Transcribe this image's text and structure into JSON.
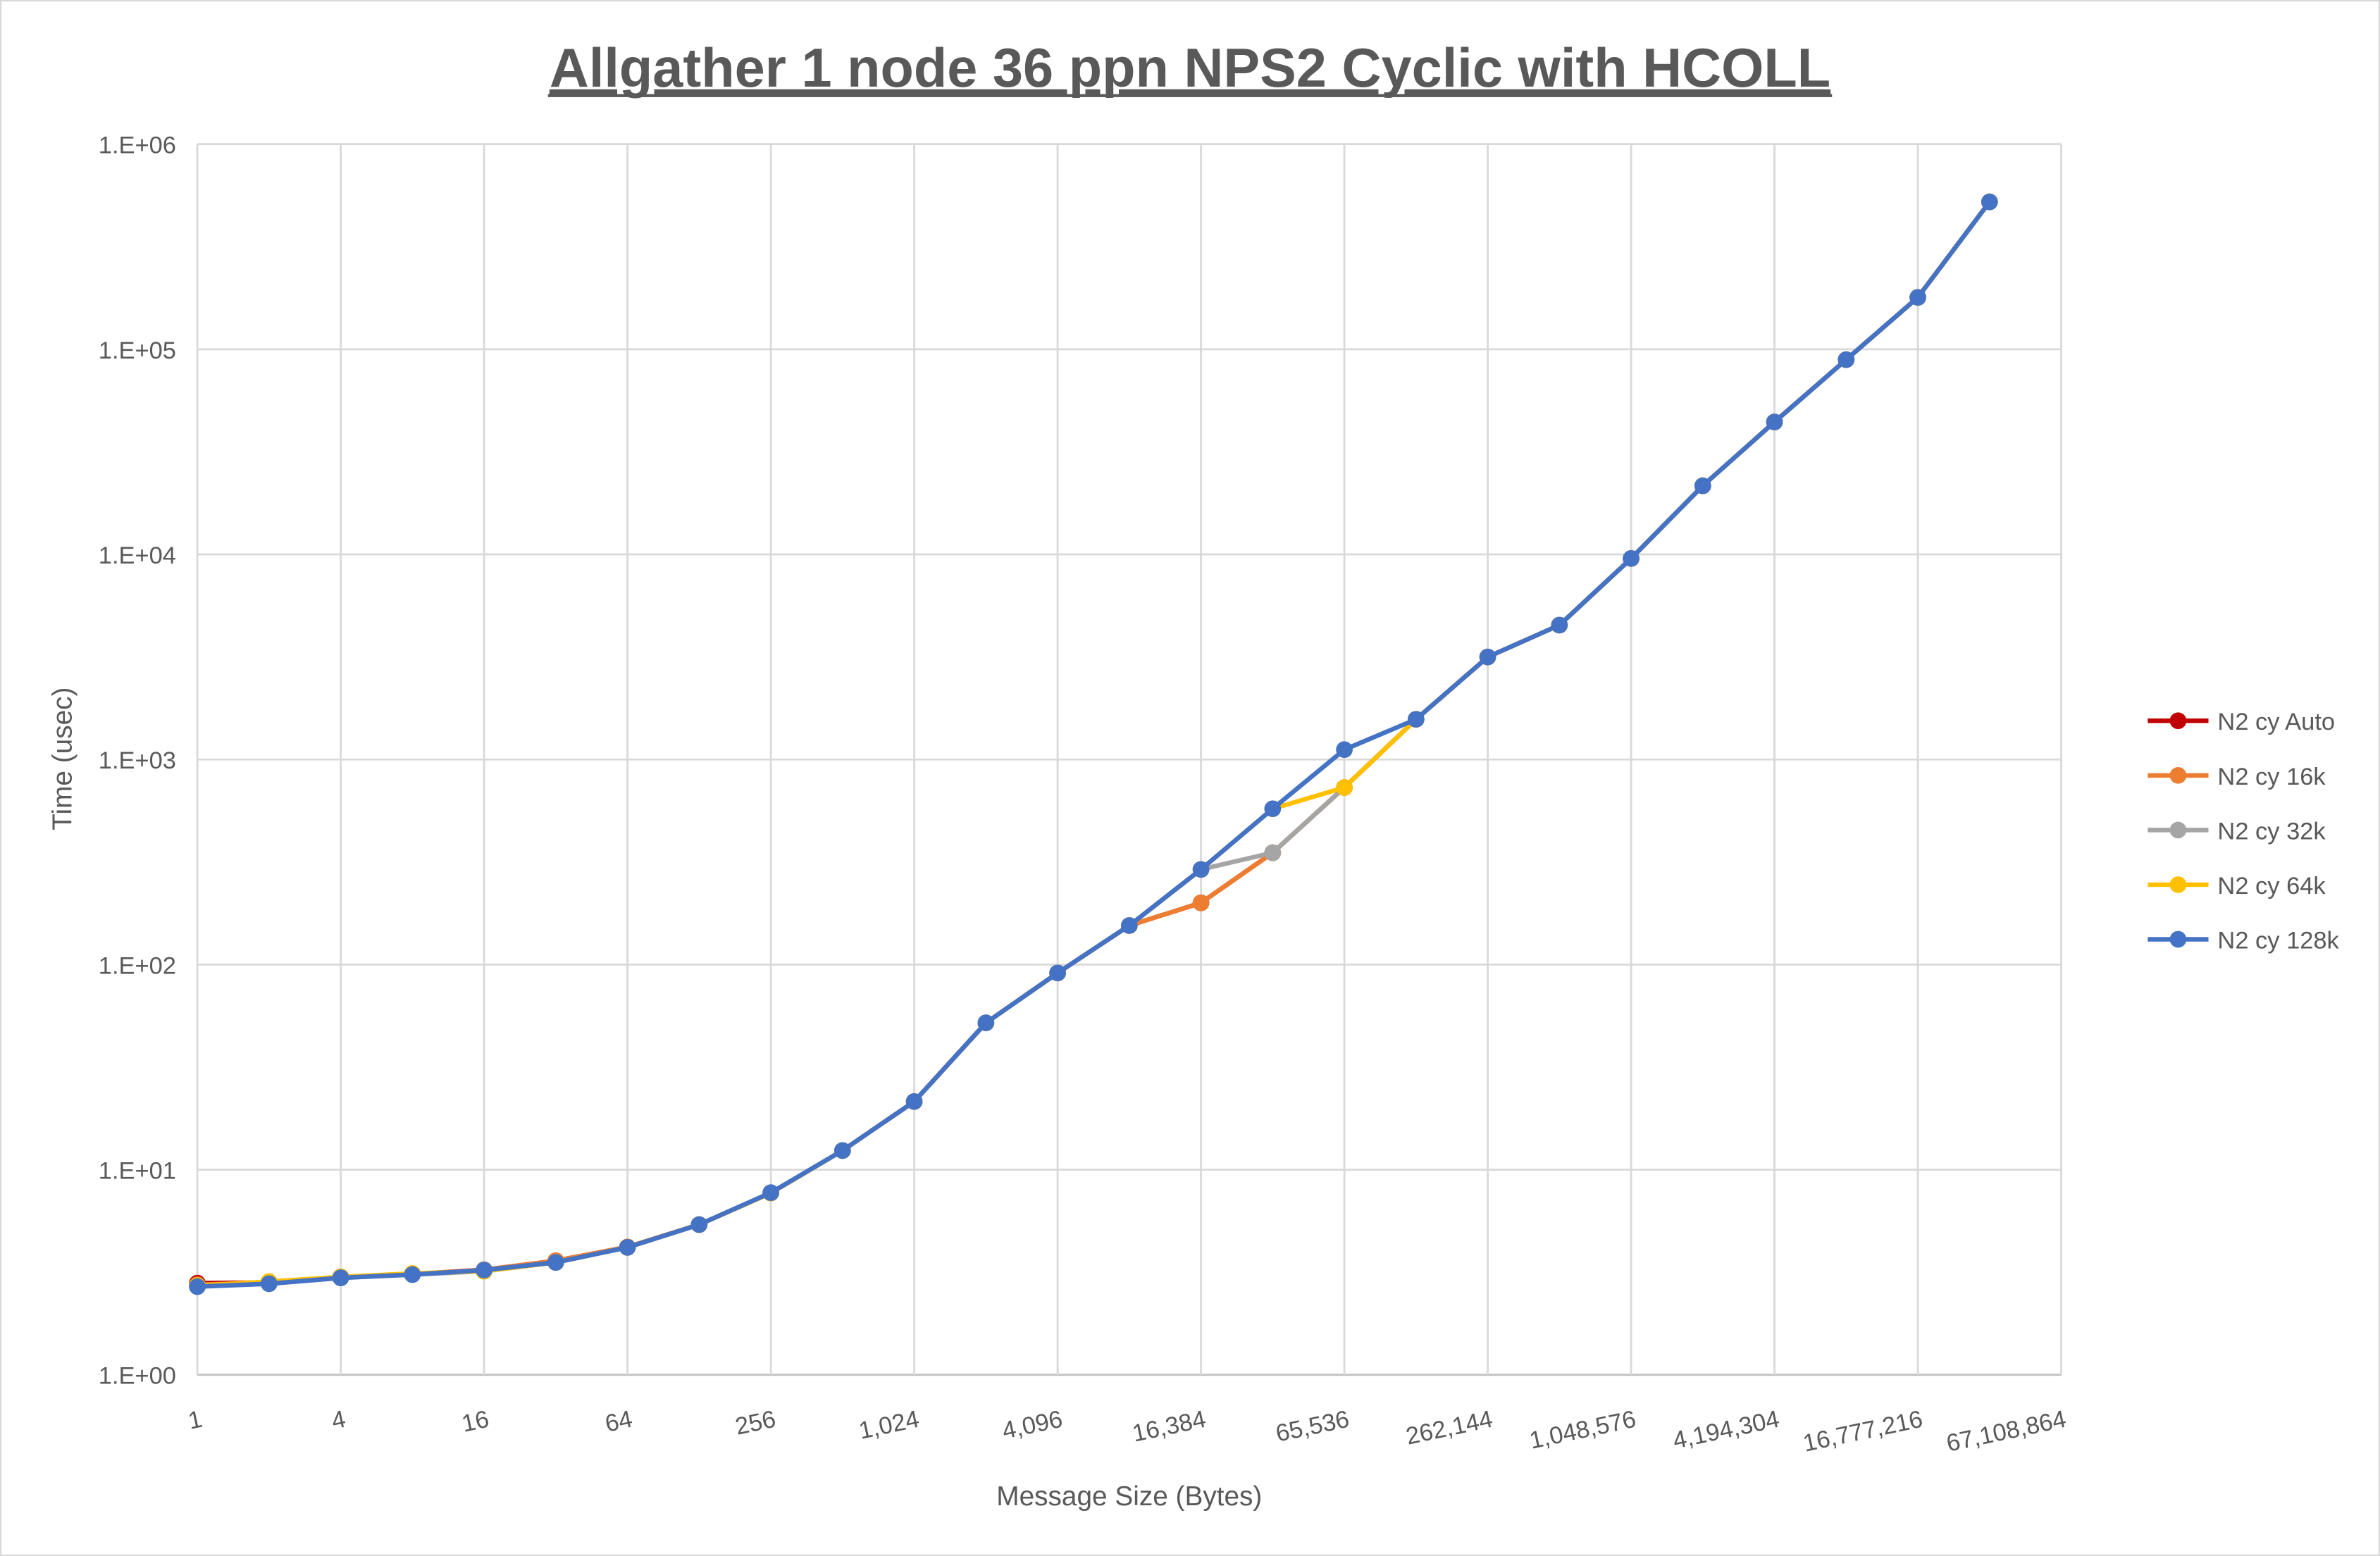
{
  "chart_data": {
    "type": "line",
    "title": "Allgather 1 node 36 ppn NPS2 Cyclic with HCOLL",
    "xlabel": "Message Size (Bytes)",
    "ylabel": "Time (usec)",
    "x_scale": "log2",
    "y_scale": "log10",
    "ylim": [
      1,
      1000000
    ],
    "xlim": [
      1,
      67108864
    ],
    "grid": true,
    "legend_position": "right",
    "x_tick_labels": [
      "1",
      "4",
      "16",
      "64",
      "256",
      "1,024",
      "4,096",
      "16,384",
      "65,536",
      "262,144",
      "1,048,576",
      "4,194,304",
      "16,777,216",
      "67,108,864"
    ],
    "y_tick_labels": [
      "1.E+00",
      "1.E+01",
      "1.E+02",
      "1.E+03",
      "1.E+04",
      "1.E+05",
      "1.E+06"
    ],
    "x": [
      1,
      2,
      4,
      8,
      16,
      32,
      64,
      128,
      256,
      512,
      1024,
      2048,
      4096,
      8192,
      16384,
      32768,
      65536,
      131072,
      262144,
      524288,
      1048576,
      2097152,
      4194304,
      8388608,
      16777216,
      33554432
    ],
    "series": [
      {
        "name": "N2 cy Auto",
        "color": "#C00000",
        "values": [
          2.8,
          2.82,
          3.0,
          3.1,
          3.25,
          3.6,
          4.2,
          5.4,
          7.7,
          12.4,
          21.5,
          52,
          91,
          155,
          200,
          351,
          730,
          1570,
          3160,
          4520,
          9550,
          21600,
          44200,
          89000,
          179000,
          523000
        ]
      },
      {
        "name": "N2 cy 16k",
        "color": "#ED7D31",
        "values": [
          2.75,
          2.82,
          3.0,
          3.1,
          3.25,
          3.6,
          4.2,
          5.4,
          7.7,
          12.4,
          21.5,
          52,
          91,
          155,
          200,
          351,
          730,
          1570,
          3160,
          4520,
          9550,
          21600,
          44200,
          89000,
          179000,
          523000
        ]
      },
      {
        "name": "N2 cy 32k",
        "color": "#A5A5A5",
        "values": [
          2.7,
          2.78,
          2.97,
          3.08,
          3.2,
          3.53,
          4.18,
          5.4,
          7.7,
          12.4,
          21.5,
          52,
          91,
          155,
          291,
          351,
          730,
          1570,
          3160,
          4520,
          9550,
          21600,
          44200,
          89000,
          179000,
          523000
        ]
      },
      {
        "name": "N2 cy 64k",
        "color": "#FFC000",
        "values": [
          2.72,
          2.85,
          3.0,
          3.12,
          3.2,
          3.53,
          4.18,
          5.4,
          7.7,
          12.4,
          21.5,
          52,
          91,
          155,
          291,
          575,
          730,
          1570,
          3160,
          4520,
          9550,
          21600,
          44200,
          89000,
          179000,
          523000
        ]
      },
      {
        "name": "N2 cy 128k",
        "color": "#4472C4",
        "values": [
          2.69,
          2.78,
          2.97,
          3.08,
          3.24,
          3.53,
          4.18,
          5.4,
          7.73,
          12.4,
          21.5,
          52,
          91,
          155,
          291,
          575,
          1117,
          1570,
          3160,
          4520,
          9550,
          21600,
          44200,
          89000,
          179000,
          523000
        ]
      }
    ]
  }
}
